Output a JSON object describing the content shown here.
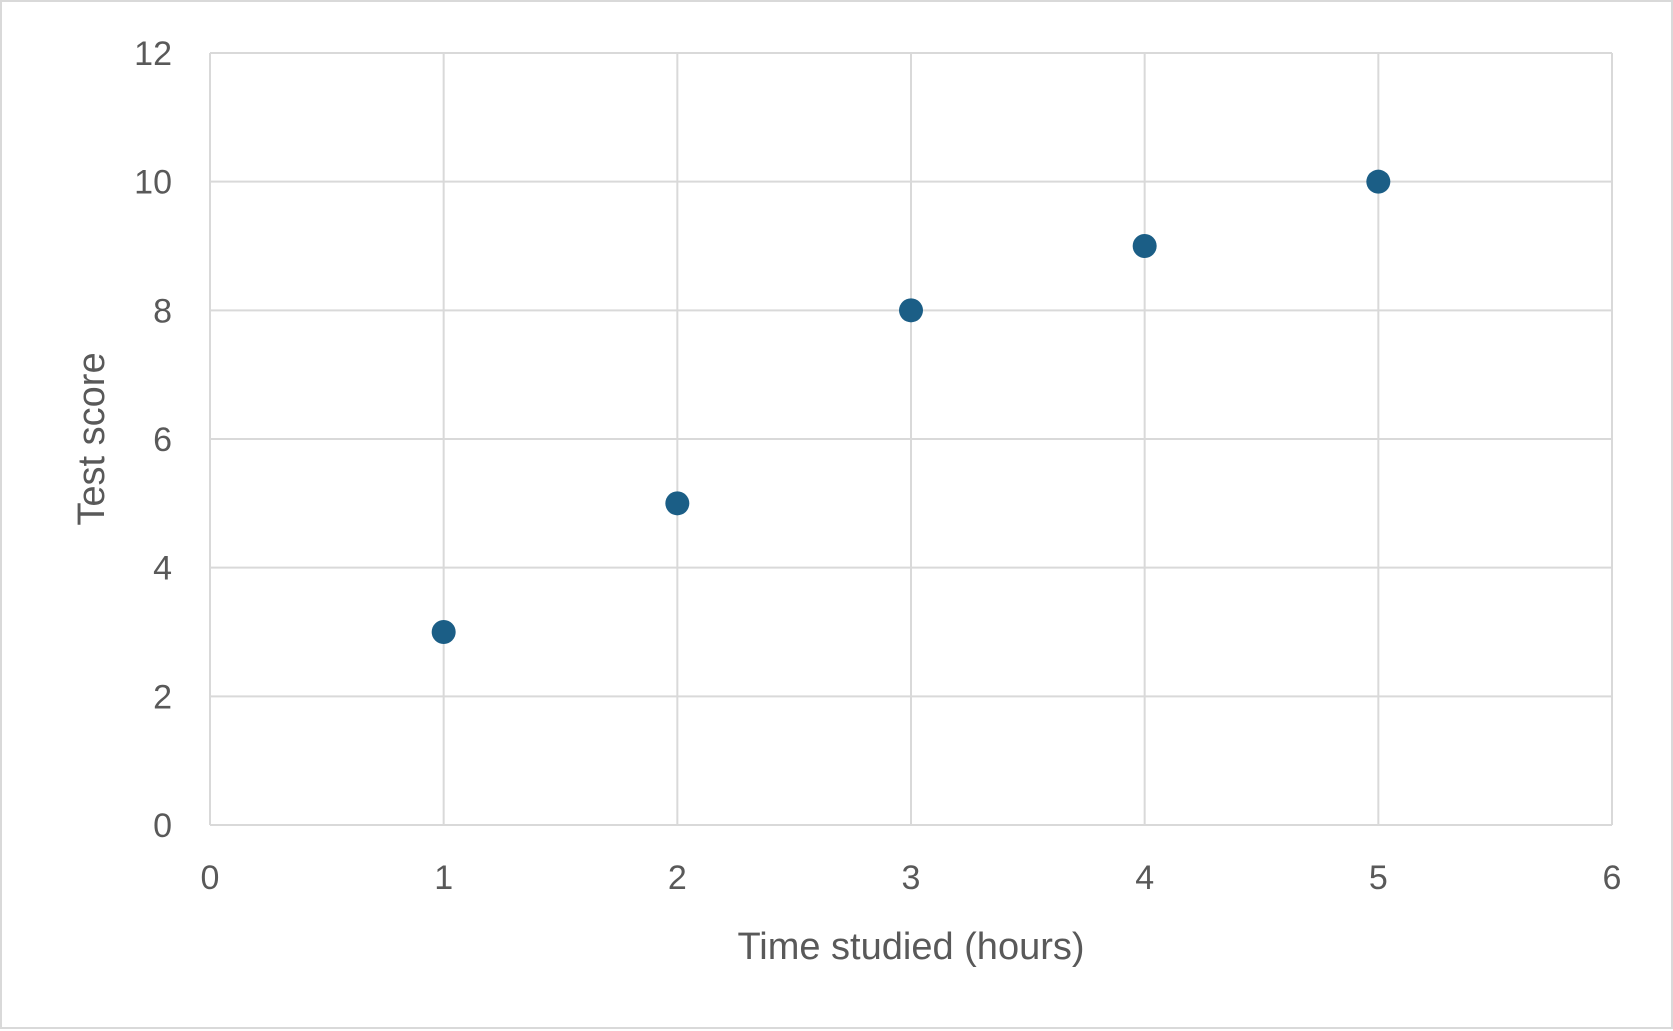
{
  "chart_data": {
    "type": "scatter",
    "xlabel": "Time studied (hours)",
    "ylabel": "Test score",
    "xlim": [
      0,
      6
    ],
    "ylim": [
      0,
      12
    ],
    "x_ticks": [
      0,
      1,
      2,
      3,
      4,
      5,
      6
    ],
    "y_ticks": [
      0,
      2,
      4,
      6,
      8,
      10,
      12
    ],
    "grid": true,
    "legend": "none",
    "series": [
      {
        "color": "#1b5e86",
        "points": [
          {
            "x": 1,
            "y": 3
          },
          {
            "x": 2,
            "y": 5
          },
          {
            "x": 3,
            "y": 8
          },
          {
            "x": 4,
            "y": 9
          },
          {
            "x": 5,
            "y": 10
          }
        ]
      }
    ],
    "colors": {
      "grid": "#d9d9d9",
      "axis_text": "#595959",
      "border": "#d9d9d9"
    }
  }
}
